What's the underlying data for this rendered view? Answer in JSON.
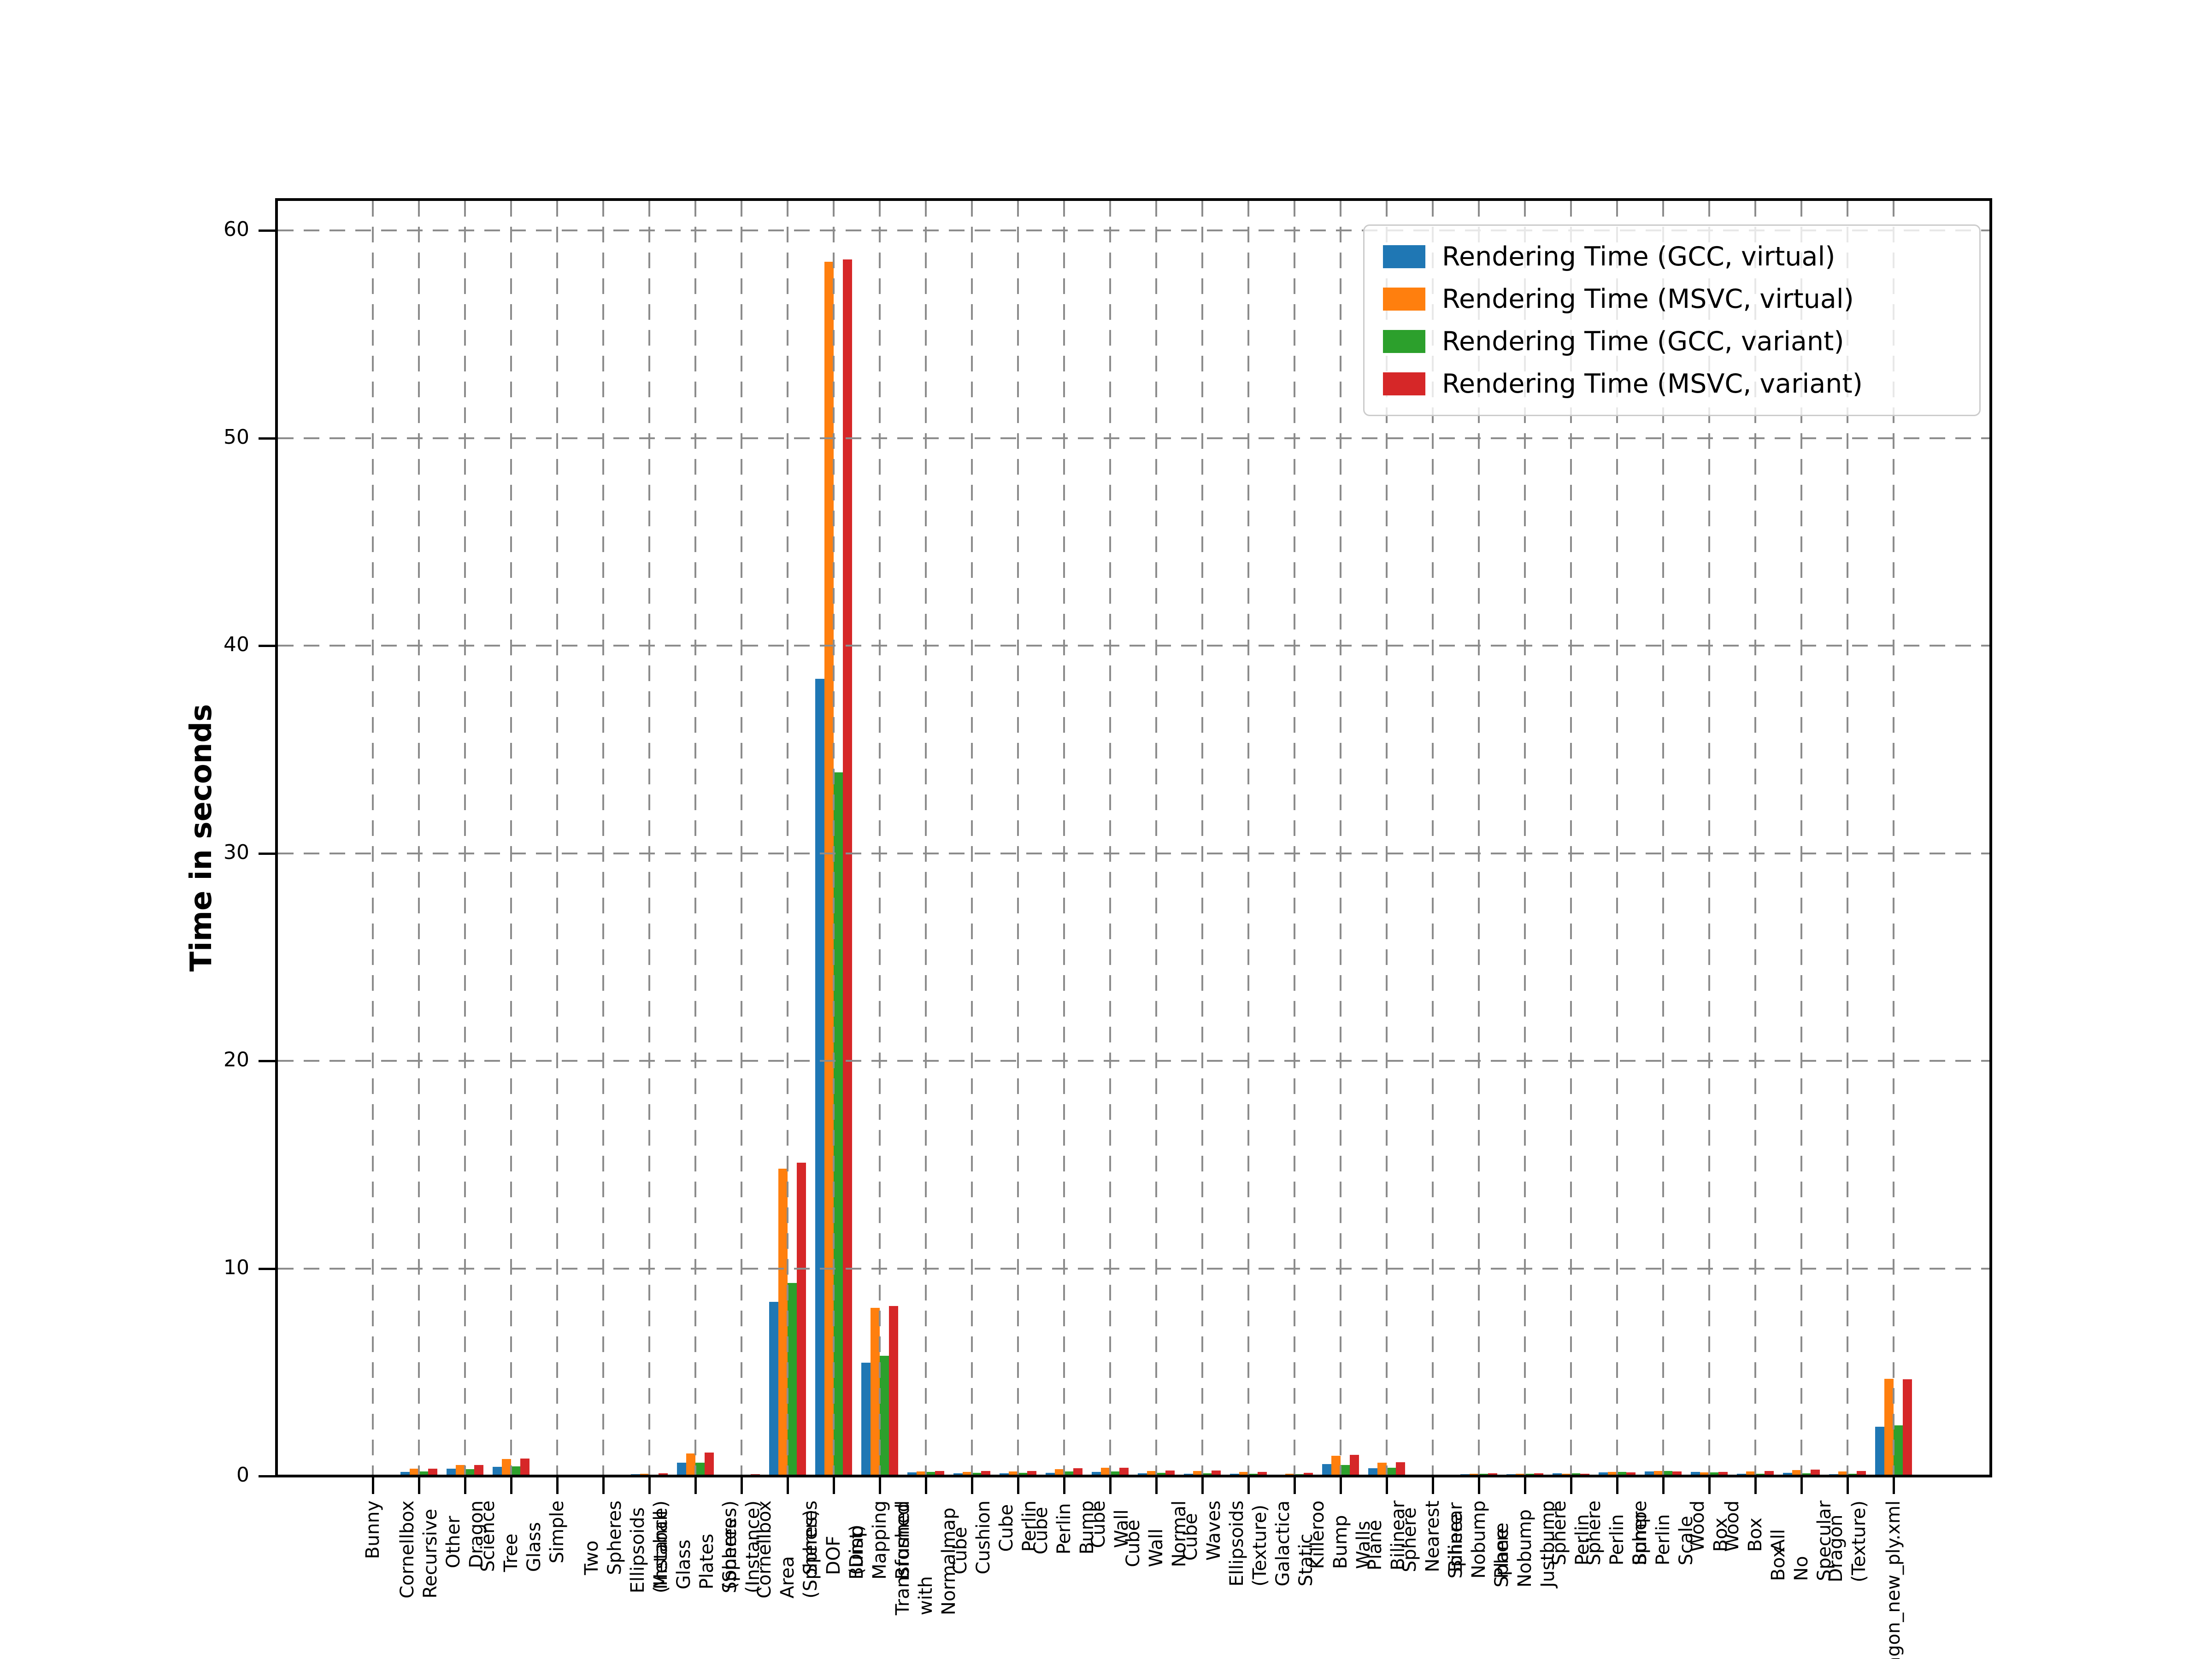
{
  "chart_data": {
    "type": "bar",
    "title": "",
    "xlabel": "",
    "ylabel": "Time in seconds",
    "ylim": [
      0,
      61.5
    ],
    "yticks": [
      0,
      10,
      20,
      30,
      40,
      50,
      60
    ],
    "grid": "dashed grey, vertical line at every category tick, horizontal every 10 units, drawn above bars",
    "legend_position": "upper right",
    "bar_group": "4 bars per category, centered on tick",
    "categories": [
      "Bunny",
      "Cornellbox\nRecursive",
      "Other\nDragon",
      "Science\nTree\nGlass",
      "Simple",
      "Two\nSpheres",
      "Ellipsoids\n(Instance)",
      "Metaball\nGlass\nPlates\n(Spheres)",
      "Spheres\n(Instance)",
      "Cornellbox\nArea\n(Spheres)",
      "Spheres\nDOF\n(Dist)",
      "Bump\nMapping\nBrushed",
      "Transformed\nwith\nNormalmap",
      "Cube\nCushion",
      "Cube\nPerlin",
      "Cube\nPerlin\nBump",
      "Cube\nWall",
      "Cube\nWall\nNormal",
      "Cube\nWaves",
      "Ellipsoids\n(Texture)",
      "Galactica\nStatic",
      "Killeroo\nBump\nWalls",
      "Plane\nBilinear",
      "Sphere\nNearest\nBilinear",
      "Sphere\nNobump\nPlane",
      "Sphere\nNobump\nJustbump",
      "Sphere\nPerlin",
      "Sphere\nPerlin\nBump",
      "Sphere\nPerlin\nScale",
      "Wood\nBox",
      "Wood\nBox\nAll",
      "Box\nNo\nSpecular",
      "Dragon\n(Texture)",
      "dragon_new_ply.xml"
    ],
    "series": [
      {
        "name": "Rendering Time (GCC, virtual)",
        "color": "#1f77b4",
        "values": [
          0.02,
          0.21,
          0.35,
          0.45,
          0.02,
          0.02,
          0.08,
          0.64,
          0.05,
          8.4,
          38.4,
          5.45,
          0.17,
          0.14,
          0.13,
          0.15,
          0.19,
          0.13,
          0.12,
          0.11,
          0.06,
          0.57,
          0.38,
          0.03,
          0.09,
          0.09,
          0.13,
          0.18,
          0.23,
          0.19,
          0.11,
          0.15,
          0.08,
          2.37
        ]
      },
      {
        "name": "Rendering Time (MSVC, virtual)",
        "color": "#ff7f0e",
        "values": [
          0.03,
          0.35,
          0.53,
          0.82,
          0.04,
          0.03,
          0.1,
          1.08,
          0.07,
          14.8,
          58.5,
          8.1,
          0.22,
          0.21,
          0.22,
          0.34,
          0.39,
          0.25,
          0.24,
          0.19,
          0.12,
          0.98,
          0.64,
          0.04,
          0.11,
          0.1,
          0.1,
          0.19,
          0.24,
          0.18,
          0.23,
          0.28,
          0.22,
          4.68
        ]
      },
      {
        "name": "Rendering Time (GCC, variant)",
        "color": "#2ca02c",
        "values": [
          0.02,
          0.23,
          0.33,
          0.46,
          0.02,
          0.02,
          0.07,
          0.64,
          0.06,
          9.3,
          33.9,
          5.8,
          0.2,
          0.16,
          0.15,
          0.22,
          0.23,
          0.15,
          0.14,
          0.11,
          0.09,
          0.54,
          0.4,
          0.03,
          0.1,
          0.11,
          0.14,
          0.2,
          0.25,
          0.18,
          0.12,
          0.13,
          0.12,
          2.44
        ]
      },
      {
        "name": "Rendering Time (MSVC, variant)",
        "color": "#d62728",
        "values": [
          0.03,
          0.36,
          0.54,
          0.85,
          0.04,
          0.03,
          0.13,
          1.14,
          0.09,
          15.1,
          58.6,
          8.2,
          0.25,
          0.24,
          0.25,
          0.37,
          0.4,
          0.27,
          0.26,
          0.21,
          0.15,
          1.02,
          0.67,
          0.05,
          0.13,
          0.14,
          0.1,
          0.18,
          0.23,
          0.21,
          0.24,
          0.31,
          0.24,
          4.66
        ]
      }
    ]
  },
  "colors": {
    "background": "#ffffff",
    "axis": "#000000",
    "grid": "#8c8c8c",
    "legend_border": "#cccccc",
    "text": "#000000"
  }
}
